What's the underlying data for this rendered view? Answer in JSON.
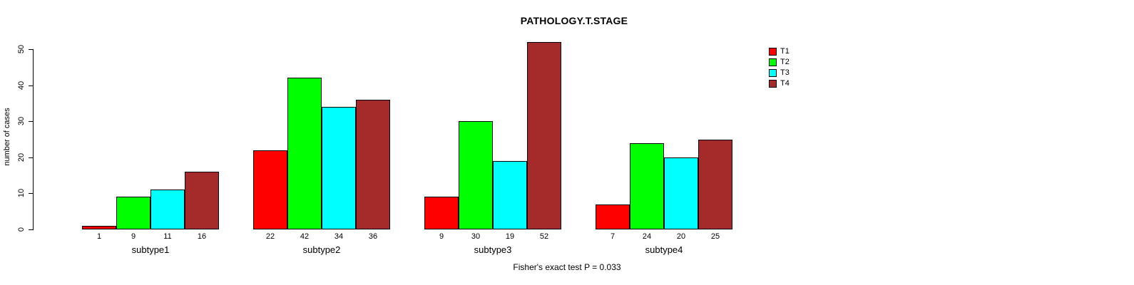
{
  "chart_data": {
    "type": "bar",
    "title": "PATHOLOGY.T.STAGE",
    "ylabel": "number of cases",
    "xlabel": "",
    "annotation": "Fisher's exact test P = 0.033",
    "categories": [
      "subtype1",
      "subtype2",
      "subtype3",
      "subtype4"
    ],
    "series": [
      {
        "name": "T1",
        "color": "#FF0000",
        "values": [
          1,
          22,
          9,
          7
        ]
      },
      {
        "name": "T2",
        "color": "#00FF00",
        "values": [
          9,
          42,
          30,
          24
        ]
      },
      {
        "name": "T3",
        "color": "#00FFFF",
        "values": [
          11,
          34,
          19,
          20
        ]
      },
      {
        "name": "T4",
        "color": "#A52A2A",
        "values": [
          16,
          36,
          52,
          25
        ]
      }
    ],
    "ylim": [
      0,
      50
    ],
    "yticks": [
      0,
      10,
      20,
      30,
      40,
      50
    ],
    "grid": false,
    "legend_position": "top-right",
    "bar_value_labels": true,
    "value_labels": {
      "subtype1": [
        1,
        9,
        11,
        16
      ],
      "subtype2": [
        22,
        42,
        34,
        36
      ],
      "subtype3": [
        9,
        30,
        19,
        52
      ],
      "subtype4": [
        7,
        24,
        20,
        25
      ]
    }
  }
}
